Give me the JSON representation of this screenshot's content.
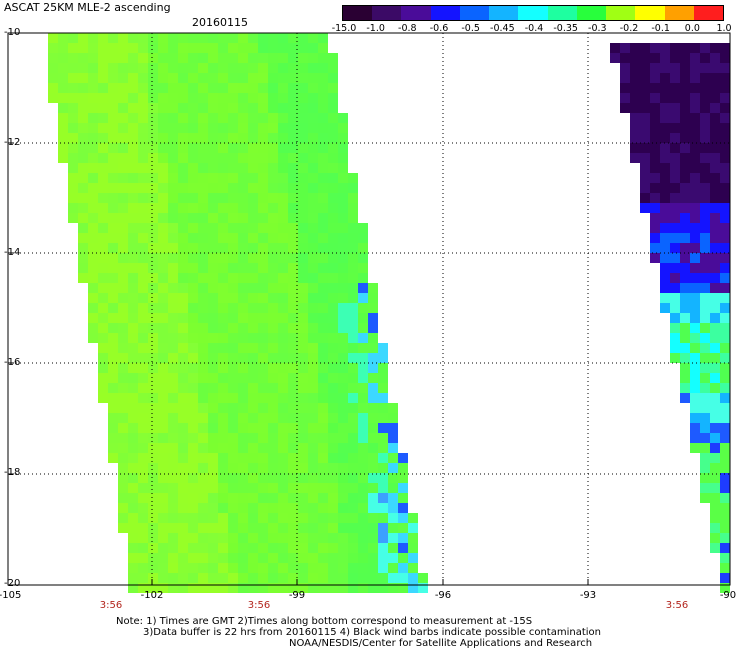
{
  "header": {
    "title": "ASCAT 25KM MLE-2 ascending",
    "date": "20160115"
  },
  "colorbar": {
    "labels": [
      "-15.0",
      "-1.0",
      "-0.8",
      "-0.6",
      "-0.5",
      "-0.45",
      "-0.4",
      "-0.35",
      "-0.3",
      "-0.2",
      "-0.1",
      "0.0",
      "1.0"
    ],
    "colors": [
      "#2a0033",
      "#3b0a66",
      "#4a0c99",
      "#1414ff",
      "#0a64ff",
      "#14b4ff",
      "#14ffff",
      "#1effa0",
      "#28ff3c",
      "#a0ff14",
      "#ffff00",
      "#ffa000",
      "#ff1e1e"
    ]
  },
  "map": {
    "lat_labels": [
      "-10",
      "-12",
      "-14",
      "-16",
      "-18",
      "-20"
    ],
    "lon_labels": [
      "-105",
      "-102",
      "-99",
      "-96",
      "-93",
      "-90"
    ],
    "time_labels": [
      "3:56",
      "3:56",
      "3:56"
    ],
    "lat_range": [
      -20,
      -10
    ],
    "lon_range": [
      -105,
      -90
    ],
    "grid": "dotted"
  },
  "notes": {
    "line1": "Note: 1) Times are GMT 2)Times along bottom correspond to measurement at -15S",
    "line2": "3)Data buffer is 22 hrs from 20160115 4) Black wind barbs indicate possible contamination",
    "line3": "NOAA/NESDIS/Center for Satellite Applications and Research"
  }
}
